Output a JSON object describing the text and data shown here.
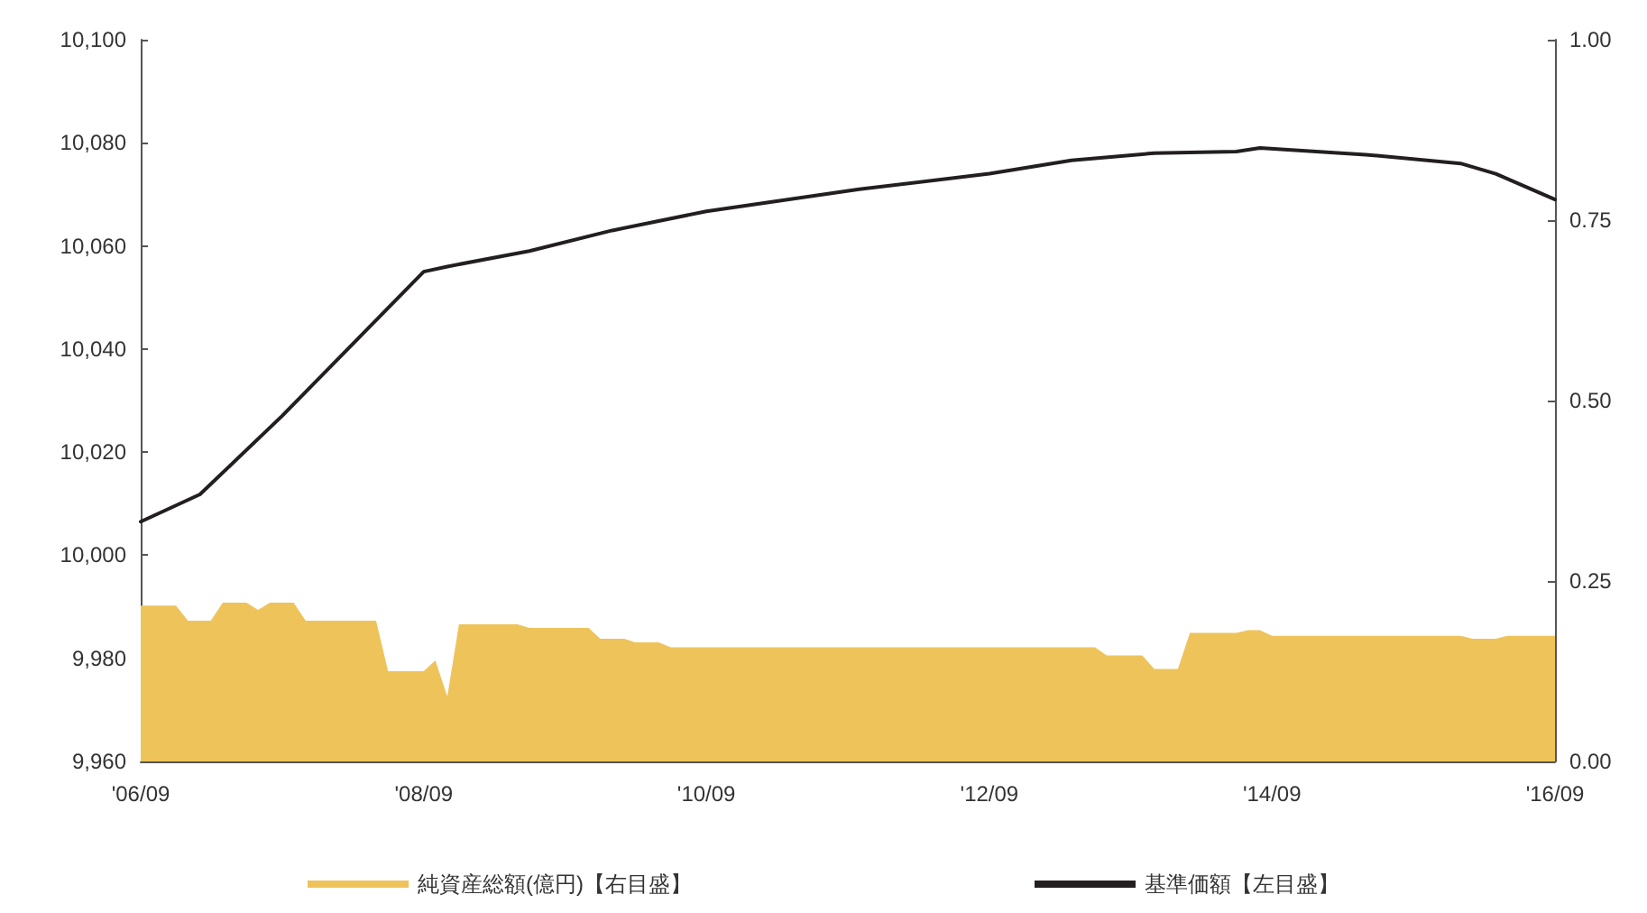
{
  "chart_data": {
    "type": "line",
    "xlim": [
      "2006-09",
      "2016-09"
    ],
    "xticks": [
      {
        "value": "2006-09",
        "label": "'06/09"
      },
      {
        "value": "2008-09",
        "label": "'08/09"
      },
      {
        "value": "2010-09",
        "label": "'10/09"
      },
      {
        "value": "2012-09",
        "label": "'12/09"
      },
      {
        "value": "2014-09",
        "label": "'14/09"
      },
      {
        "value": "2016-09",
        "label": "'16/09"
      }
    ],
    "ylim": [
      9960,
      10100
    ],
    "yticks": [
      {
        "value": 9960,
        "label": "9,960"
      },
      {
        "value": 9980,
        "label": "9,980"
      },
      {
        "value": 10000,
        "label": "10,000"
      },
      {
        "value": 10020,
        "label": "10,020"
      },
      {
        "value": 10040,
        "label": "10,040"
      },
      {
        "value": 10060,
        "label": "10,060"
      },
      {
        "value": 10080,
        "label": "10,080"
      },
      {
        "value": 10100,
        "label": "10,100"
      }
    ],
    "y2lim": [
      0,
      1
    ],
    "y2ticks": [
      {
        "value": 0,
        "label": "0.00"
      },
      {
        "value": 0.25,
        "label": "0.25"
      },
      {
        "value": 0.5,
        "label": "0.50"
      },
      {
        "value": 0.75,
        "label": "0.75"
      },
      {
        "value": 1,
        "label": "1.00"
      }
    ],
    "grid": false,
    "legend": "bottom",
    "marker": "none",
    "line_style": "solid",
    "series": [
      {
        "name": "純資産総額(億円)【右目盛】",
        "type": "area",
        "axis": "y2",
        "color": "#eec35a",
        "x": [
          "2006-09",
          "2006-12",
          "2007-01",
          "2007-03",
          "2007-04",
          "2007-06",
          "2007-07",
          "2007-08",
          "2007-10",
          "2007-11",
          "2008-05",
          "2008-06",
          "2008-09",
          "2008-10",
          "2008-11",
          "2008-12",
          "2009-05",
          "2009-06",
          "2009-11",
          "2009-12",
          "2010-02",
          "2010-03",
          "2010-05",
          "2010-06",
          "2013-06",
          "2013-07",
          "2013-10",
          "2013-11",
          "2014-01",
          "2014-02",
          "2014-06",
          "2014-07",
          "2014-08",
          "2014-09",
          "2016-01",
          "2016-02",
          "2016-04",
          "2016-05",
          "2016-09"
        ],
        "values": [
          0.216,
          0.216,
          0.195,
          0.195,
          0.22,
          0.22,
          0.21,
          0.22,
          0.22,
          0.195,
          0.195,
          0.125,
          0.125,
          0.14,
          0.09,
          0.19,
          0.19,
          0.185,
          0.185,
          0.17,
          0.17,
          0.165,
          0.165,
          0.158,
          0.158,
          0.147,
          0.147,
          0.128,
          0.128,
          0.178,
          0.178,
          0.182,
          0.182,
          0.174,
          0.174,
          0.17,
          0.17,
          0.174,
          0.174
        ]
      },
      {
        "name": "基準価額【左目盛】",
        "color": "#231f20",
        "x": [
          "2006-09",
          "2007-02",
          "2007-09",
          "2008-09",
          "2008-11",
          "2009-06",
          "2010-01",
          "2010-09",
          "2011-10",
          "2012-09",
          "2013-04",
          "2013-11",
          "2014-06",
          "2014-08",
          "2015-05",
          "2016-01",
          "2016-04",
          "2016-09"
        ],
        "values": [
          10006.5,
          10011.8,
          10027,
          10055,
          10056,
          10059,
          10063,
          10066.7,
          10071,
          10074,
          10076.6,
          10078,
          10078.3,
          10079,
          10077.7,
          10076,
          10074,
          10069
        ]
      }
    ]
  }
}
